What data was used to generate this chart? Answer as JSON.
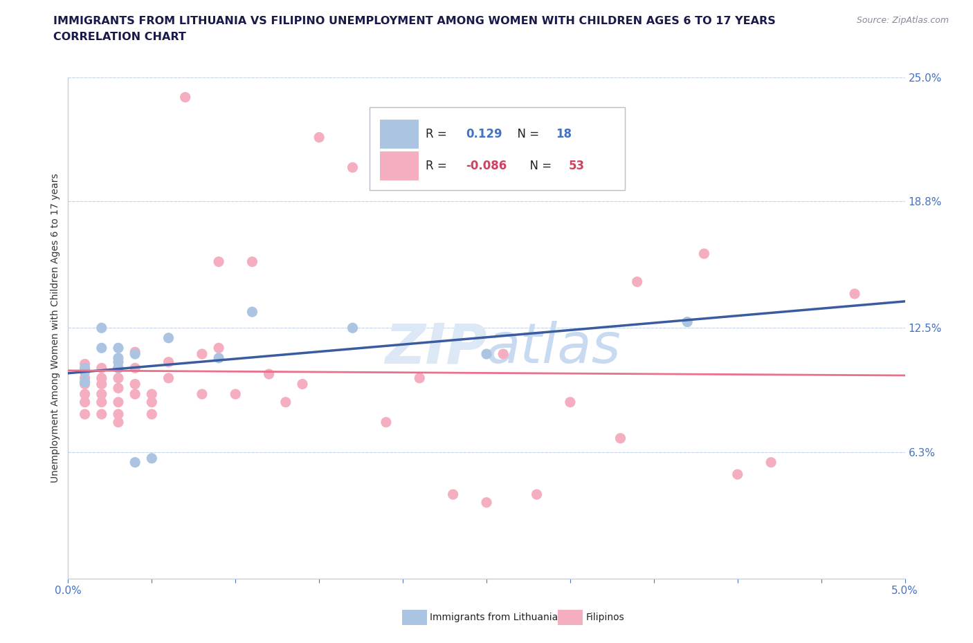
{
  "title_line1": "IMMIGRANTS FROM LITHUANIA VS FILIPINO UNEMPLOYMENT AMONG WOMEN WITH CHILDREN AGES 6 TO 17 YEARS",
  "title_line2": "CORRELATION CHART",
  "source_text": "Source: ZipAtlas.com",
  "ylabel": "Unemployment Among Women with Children Ages 6 to 17 years",
  "xlim": [
    0.0,
    0.05
  ],
  "ylim": [
    0.0,
    0.25
  ],
  "yticks": [
    0.063,
    0.125,
    0.188,
    0.25
  ],
  "ytick_labels": [
    "6.3%",
    "12.5%",
    "18.8%",
    "25.0%"
  ],
  "xticks": [
    0.0,
    0.005,
    0.01,
    0.015,
    0.02,
    0.025,
    0.03,
    0.035,
    0.04,
    0.045,
    0.05
  ],
  "xtick_labels": [
    "0.0%",
    "",
    "",
    "",
    "",
    "",
    "",
    "",
    "",
    "",
    "5.0%"
  ],
  "watermark": "ZIPatlas",
  "legend_r1": "R =  0.129   N = 18",
  "legend_r2": "R = -0.086   N = 53",
  "lithuania_color": "#aac4e2",
  "filipino_color": "#f5aec0",
  "trend_lith_color": "#3a5ba0",
  "trend_fil_color": "#e8708a",
  "axis_label_color": "#4472c4",
  "grid_color": "#c8d4e8",
  "title_color": "#1a1a4a",
  "source_color": "#888899",
  "legend_text_color_blue": "#4472c4",
  "legend_text_color_pink": "#d04060",
  "legend_n_color": "#1a1a4a",
  "lithuania_x": [
    0.001,
    0.001,
    0.001,
    0.002,
    0.002,
    0.003,
    0.003,
    0.003,
    0.003,
    0.004,
    0.004,
    0.005,
    0.006,
    0.009,
    0.011,
    0.017,
    0.025,
    0.037
  ],
  "lithuania_y": [
    0.105,
    0.103,
    0.098,
    0.125,
    0.115,
    0.115,
    0.108,
    0.105,
    0.11,
    0.112,
    0.058,
    0.06,
    0.12,
    0.11,
    0.133,
    0.125,
    0.112,
    0.128
  ],
  "filipino_x": [
    0.001,
    0.001,
    0.001,
    0.001,
    0.001,
    0.001,
    0.001,
    0.002,
    0.002,
    0.002,
    0.002,
    0.002,
    0.002,
    0.003,
    0.003,
    0.003,
    0.003,
    0.003,
    0.003,
    0.004,
    0.004,
    0.004,
    0.004,
    0.005,
    0.005,
    0.005,
    0.006,
    0.006,
    0.007,
    0.008,
    0.008,
    0.009,
    0.009,
    0.01,
    0.011,
    0.012,
    0.013,
    0.014,
    0.015,
    0.017,
    0.019,
    0.021,
    0.023,
    0.025,
    0.026,
    0.028,
    0.03,
    0.033,
    0.034,
    0.038,
    0.04,
    0.042,
    0.047
  ],
  "filipino_y": [
    0.107,
    0.104,
    0.1,
    0.097,
    0.092,
    0.088,
    0.082,
    0.105,
    0.1,
    0.097,
    0.092,
    0.088,
    0.082,
    0.105,
    0.1,
    0.095,
    0.088,
    0.082,
    0.078,
    0.113,
    0.105,
    0.097,
    0.092,
    0.092,
    0.088,
    0.082,
    0.108,
    0.1,
    0.24,
    0.112,
    0.092,
    0.158,
    0.115,
    0.092,
    0.158,
    0.102,
    0.088,
    0.097,
    0.22,
    0.205,
    0.078,
    0.1,
    0.042,
    0.038,
    0.112,
    0.042,
    0.088,
    0.07,
    0.148,
    0.162,
    0.052,
    0.058,
    0.142
  ]
}
